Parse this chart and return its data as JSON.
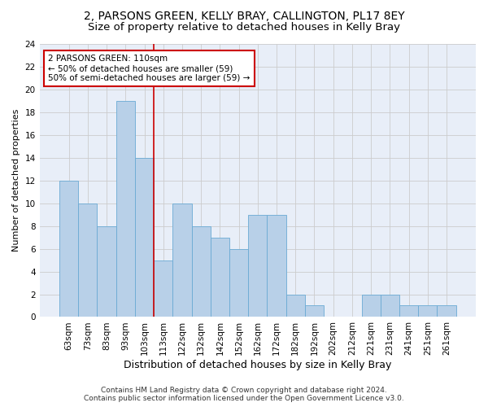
{
  "title": "2, PARSONS GREEN, KELLY BRAY, CALLINGTON, PL17 8EY",
  "subtitle": "Size of property relative to detached houses in Kelly Bray",
  "xlabel": "Distribution of detached houses by size in Kelly Bray",
  "ylabel": "Number of detached properties",
  "categories": [
    "63sqm",
    "73sqm",
    "83sqm",
    "93sqm",
    "103sqm",
    "113sqm",
    "122sqm",
    "132sqm",
    "142sqm",
    "152sqm",
    "162sqm",
    "172sqm",
    "182sqm",
    "192sqm",
    "202sqm",
    "212sqm",
    "221sqm",
    "231sqm",
    "241sqm",
    "251sqm",
    "261sqm"
  ],
  "values": [
    12,
    10,
    8,
    19,
    14,
    5,
    10,
    8,
    7,
    6,
    9,
    9,
    2,
    1,
    0,
    0,
    2,
    2,
    1,
    1,
    1
  ],
  "bar_color": "#b8d0e8",
  "bar_edge_color": "#6aaad4",
  "red_line_index": 5,
  "red_line_color": "#cc0000",
  "annotation_text": "2 PARSONS GREEN: 110sqm\n← 50% of detached houses are smaller (59)\n50% of semi-detached houses are larger (59) →",
  "annotation_box_color": "white",
  "annotation_box_edgecolor": "#cc0000",
  "ylim": [
    0,
    24
  ],
  "yticks": [
    0,
    2,
    4,
    6,
    8,
    10,
    12,
    14,
    16,
    18,
    20,
    22,
    24
  ],
  "grid_color": "#cccccc",
  "background_color": "#e8eef8",
  "footer_line1": "Contains HM Land Registry data © Crown copyright and database right 2024.",
  "footer_line2": "Contains public sector information licensed under the Open Government Licence v3.0.",
  "title_fontsize": 10,
  "subtitle_fontsize": 9.5,
  "xlabel_fontsize": 9,
  "ylabel_fontsize": 8,
  "tick_fontsize": 7.5,
  "annotation_fontsize": 7.5,
  "footer_fontsize": 6.5
}
